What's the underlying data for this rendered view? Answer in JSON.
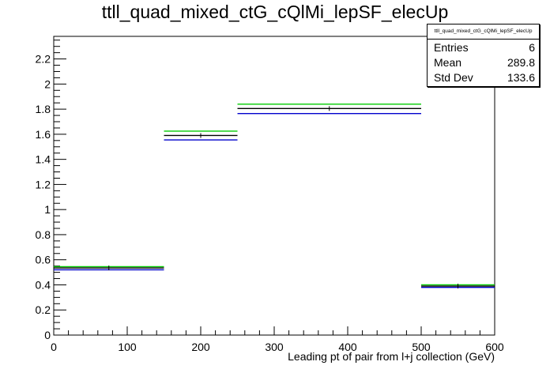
{
  "chart_data": {
    "type": "bar",
    "title": "ttll_quad_mixed_ctG_cQlMi_lepSF_elecUp",
    "xlabel": "Leading pt of pair from l+j collection (GeV)",
    "ylabel": "",
    "xlim": [
      0,
      600
    ],
    "ylim": [
      0,
      2.38
    ],
    "x_ticks": [
      0,
      100,
      200,
      300,
      400,
      500,
      600
    ],
    "y_ticks": [
      0,
      0.2,
      0.4,
      0.6,
      0.8,
      1,
      1.2,
      1.4,
      1.6,
      1.8,
      2,
      2.2
    ],
    "bin_edges": [
      0,
      150,
      250,
      500,
      600
    ],
    "series": [
      {
        "color": "#00cc00",
        "values": [
          0.545,
          1.625,
          1.84,
          0.4
        ]
      },
      {
        "color": "#000000",
        "values": [
          0.535,
          1.59,
          1.805,
          0.39
        ]
      },
      {
        "color": "#0000cc",
        "values": [
          0.52,
          1.555,
          1.765,
          0.38
        ]
      }
    ],
    "grid": false,
    "legend": "none"
  },
  "stats": {
    "name": "ttll_quad_mixed_ctG_cQlMi_lepSF_elecUp",
    "rows": [
      {
        "label": "Entries",
        "value": "6"
      },
      {
        "label": "Mean",
        "value": "289.8"
      },
      {
        "label": "Std Dev",
        "value": "133.6"
      }
    ]
  }
}
